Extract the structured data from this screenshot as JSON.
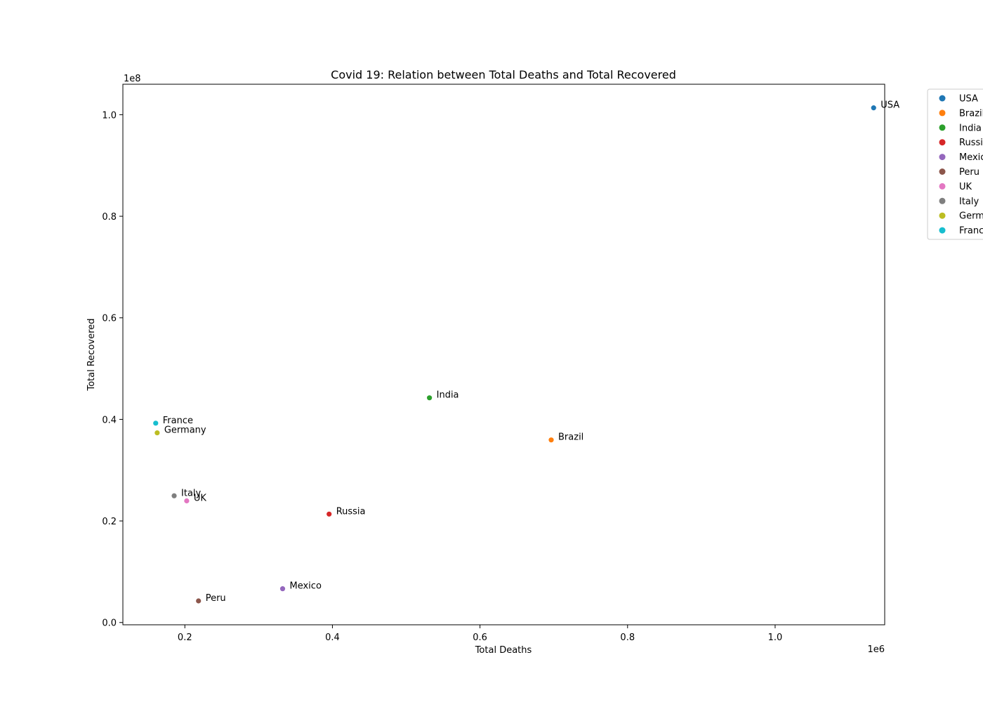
{
  "chart_data": {
    "type": "scatter",
    "title": "Covid 19: Relation between Total Deaths and Total Recovered",
    "xlabel": "Total Deaths",
    "ylabel": "Total Recovered",
    "x_exponent": "1e6",
    "y_exponent": "1e8",
    "xlim": [
      0.116,
      1.1485
    ],
    "ylim": [
      -0.0045,
      1.06
    ],
    "xticks": [
      0.2,
      0.4,
      0.6,
      0.8,
      1.0
    ],
    "xtick_labels": [
      "0.2",
      "0.4",
      "0.6",
      "0.8",
      "1.0"
    ],
    "yticks": [
      0.0,
      0.2,
      0.4,
      0.6,
      0.8,
      1.0
    ],
    "ytick_labels": [
      "0.0",
      "0.2",
      "0.4",
      "0.6",
      "0.8",
      "1.0"
    ],
    "grid": false,
    "legend_position": "outside upper right (clipped)",
    "series": [
      {
        "name": "USA",
        "legend_label": "USA",
        "x": 1.1335,
        "y": 1.0135,
        "color": "#1f77b4"
      },
      {
        "name": "Brazil",
        "legend_label": "Brazil",
        "x": 0.6965,
        "y": 0.3595,
        "color": "#ff7f0e"
      },
      {
        "name": "India",
        "legend_label": "India",
        "x": 0.5315,
        "y": 0.4425,
        "color": "#2ca02c"
      },
      {
        "name": "Russia",
        "legend_label": "Russia",
        "x": 0.3955,
        "y": 0.2135,
        "color": "#d62728"
      },
      {
        "name": "Mexico",
        "legend_label": "Mexico",
        "x": 0.3325,
        "y": 0.0665,
        "color": "#9467bd"
      },
      {
        "name": "Peru",
        "legend_label": "Peru",
        "x": 0.2185,
        "y": 0.0425,
        "color": "#8c564b"
      },
      {
        "name": "UK",
        "legend_label": "UK",
        "x": 0.2025,
        "y": 0.2395,
        "color": "#e377c2"
      },
      {
        "name": "Italy",
        "legend_label": "Italy",
        "x": 0.1855,
        "y": 0.2495,
        "color": "#7f7f7f"
      },
      {
        "name": "Germany",
        "legend_label": "Germany",
        "x": 0.1625,
        "y": 0.3735,
        "color": "#bcbd22"
      },
      {
        "name": "France",
        "legend_label": "France",
        "x": 0.1605,
        "y": 0.3925,
        "color": "#17becf"
      }
    ]
  }
}
